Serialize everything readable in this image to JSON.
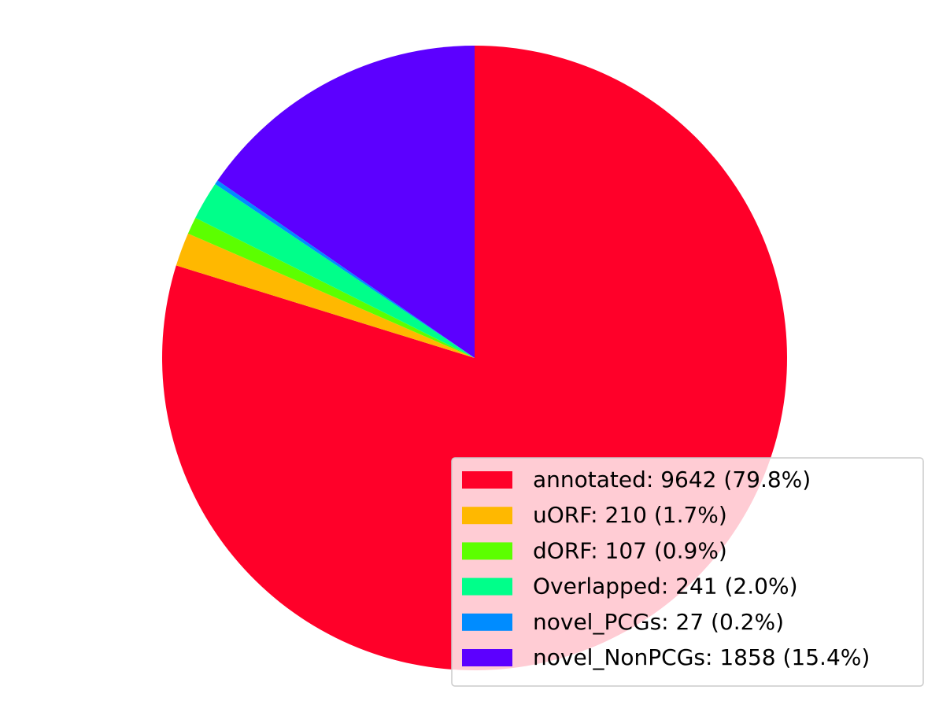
{
  "chart_data": {
    "type": "pie",
    "title": "",
    "start_angle_deg": 90,
    "direction": "clockwise",
    "legend_location": "lower right",
    "slices": [
      {
        "label": "annotated",
        "value": 9642,
        "percent": "79.8%",
        "legend_text": "annotated: 9642 (79.8%)",
        "color": "#ff0029"
      },
      {
        "label": "uORF",
        "value": 210,
        "percent": "1.7%",
        "legend_text": "uORF: 210 (1.7%)",
        "color": "#ffb800"
      },
      {
        "label": "dORF",
        "value": 107,
        "percent": "0.9%",
        "legend_text": "dORF: 107 (0.9%)",
        "color": "#5cff00"
      },
      {
        "label": "Overlapped",
        "value": 241,
        "percent": "2.0%",
        "legend_text": "Overlapped: 241 (2.0%)",
        "color": "#00ff8a"
      },
      {
        "label": "novel_PCGs",
        "value": 27,
        "percent": "0.2%",
        "legend_text": "novel_PCGs: 27 (0.2%)",
        "color": "#008cff"
      },
      {
        "label": "novel_NonPCGs",
        "value": 1858,
        "percent": "15.4%",
        "legend_text": "novel_NonPCGs: 1858 (15.4%)",
        "color": "#5c00ff"
      }
    ]
  }
}
